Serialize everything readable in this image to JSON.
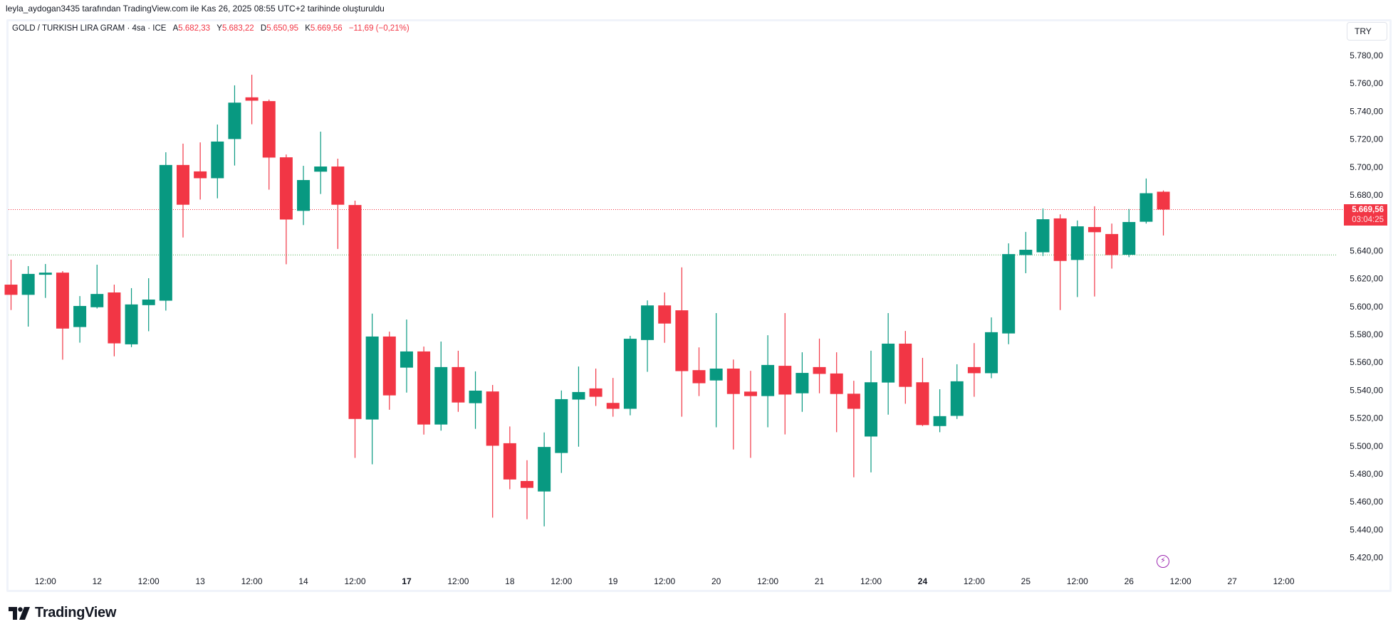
{
  "attribution": "leyla_aydogan3435 tarafından TradingView.com ile Kas 26, 2025 08:55 UTC+2 tarihinde oluşturuldu",
  "legend": {
    "symbol": "GOLD / TURKISH LIRA GRAM · 4sa · ICE",
    "open_label": "A",
    "open": "5.682,33",
    "high_label": "Y",
    "high": "5.683,22",
    "low_label": "D",
    "low": "5.650,95",
    "close_label": "K",
    "close": "5.669,56",
    "change": "−11,69 (−0,21%)"
  },
  "currency_button": "TRY",
  "last_price": {
    "price": "5.669,56",
    "countdown": "03:04:25"
  },
  "brand": "TradingView",
  "colors": {
    "up": "#089981",
    "down": "#f23645",
    "last_line": "#f23645",
    "ref_line": "#4caf50",
    "event": "#9c27b0"
  },
  "event_icon": "lightning-icon",
  "chart_data": {
    "type": "candlestick",
    "title": "GOLD / TURKISH LIRA GRAM · 4sa · ICE",
    "ylim": [
      5406,
      5790
    ],
    "last_price": 5669.56,
    "reference_line": 5637,
    "y_ticks": [
      {
        "v": 5780,
        "label": "5.780,00"
      },
      {
        "v": 5760,
        "label": "5.760,00"
      },
      {
        "v": 5740,
        "label": "5.740,00"
      },
      {
        "v": 5720,
        "label": "5.720,00"
      },
      {
        "v": 5700,
        "label": "5.700,00"
      },
      {
        "v": 5680,
        "label": "5.680,00"
      },
      {
        "v": 5640,
        "label": "5.640,00"
      },
      {
        "v": 5620,
        "label": "5.620,00"
      },
      {
        "v": 5600,
        "label": "5.600,00"
      },
      {
        "v": 5580,
        "label": "5.580,00"
      },
      {
        "v": 5560,
        "label": "5.560,00"
      },
      {
        "v": 5540,
        "label": "5.540,00"
      },
      {
        "v": 5520,
        "label": "5.520,00"
      },
      {
        "v": 5500,
        "label": "5.500,00"
      },
      {
        "v": 5480,
        "label": "5.480,00"
      },
      {
        "v": 5460,
        "label": "5.460,00"
      },
      {
        "v": 5440,
        "label": "5.440,00"
      },
      {
        "v": 5420,
        "label": "5.420,00"
      }
    ],
    "x_ticks": [
      {
        "label": "12:00"
      },
      {
        "label": "12"
      },
      {
        "label": "12:00"
      },
      {
        "label": "13"
      },
      {
        "label": "12:00"
      },
      {
        "label": "14"
      },
      {
        "label": "12:00"
      },
      {
        "label": "17",
        "bold": true
      },
      {
        "label": "12:00"
      },
      {
        "label": "18"
      },
      {
        "label": "12:00"
      },
      {
        "label": "19"
      },
      {
        "label": "12:00"
      },
      {
        "label": "20"
      },
      {
        "label": "12:00"
      },
      {
        "label": "21"
      },
      {
        "label": "12:00"
      },
      {
        "label": "24",
        "bold": true
      },
      {
        "label": "12:00"
      },
      {
        "label": "25"
      },
      {
        "label": "12:00"
      },
      {
        "label": "26"
      },
      {
        "label": "12:00"
      },
      {
        "label": "27"
      },
      {
        "label": "12:00"
      }
    ],
    "ohlc_fields": [
      "open",
      "high",
      "low",
      "close"
    ],
    "candles": [
      [
        5615.7,
        5633.6,
        5597.5,
        5608.4
      ],
      [
        5608.4,
        5629.0,
        5585.6,
        5623.4
      ],
      [
        5622.8,
        5630.5,
        5606.2,
        5624.3
      ],
      [
        5624.3,
        5625.4,
        5561.9,
        5584.2
      ],
      [
        5585.3,
        5607.5,
        5574.1,
        5600.4
      ],
      [
        5599.5,
        5630.0,
        5598.6,
        5609.0
      ],
      [
        5610.1,
        5615.7,
        5564.3,
        5573.6
      ],
      [
        5572.9,
        5613.2,
        5570.9,
        5601.5
      ],
      [
        5601.0,
        5620.3,
        5582.3,
        5605.0
      ],
      [
        5604.2,
        5710.6,
        5597.1,
        5701.5
      ],
      [
        5701.5,
        5716.8,
        5649.5,
        5673.0
      ],
      [
        5696.9,
        5717.7,
        5676.7,
        5692.0
      ],
      [
        5692.0,
        5730.5,
        5677.6,
        5718.3
      ],
      [
        5720.1,
        5758.6,
        5701.1,
        5746.2
      ],
      [
        5750.0,
        5766.2,
        5730.7,
        5747.6
      ],
      [
        5747.3,
        5748.4,
        5683.8,
        5706.8
      ],
      [
        5707.0,
        5709.0,
        5630.3,
        5662.4
      ],
      [
        5668.6,
        5700.9,
        5658.4,
        5690.7
      ],
      [
        5696.7,
        5725.4,
        5680.7,
        5700.4
      ],
      [
        5700.4,
        5706.0,
        5641.3,
        5673.0
      ],
      [
        5672.8,
        5675.9,
        5491.5,
        5519.4
      ],
      [
        5519.0,
        5594.9,
        5486.9,
        5578.5
      ],
      [
        5578.5,
        5582.0,
        5526.0,
        5536.3
      ],
      [
        5556.2,
        5590.7,
        5538.3,
        5567.8
      ],
      [
        5567.8,
        5571.3,
        5508.2,
        5515.4
      ],
      [
        5515.4,
        5574.9,
        5511.0,
        5556.6
      ],
      [
        5556.6,
        5568.3,
        5524.5,
        5531.2
      ],
      [
        5530.7,
        5553.5,
        5512.3,
        5539.7
      ],
      [
        5539.1,
        5543.8,
        5448.6,
        5500.2
      ],
      [
        5502.0,
        5514.0,
        5469.0,
        5476.0
      ],
      [
        5474.9,
        5489.8,
        5447.5,
        5470.0
      ],
      [
        5467.4,
        5509.7,
        5442.4,
        5499.3
      ],
      [
        5495.0,
        5539.8,
        5480.7,
        5533.6
      ],
      [
        5533.3,
        5557.0,
        5499.5,
        5538.7
      ],
      [
        5541.3,
        5555.5,
        5528.7,
        5535.3
      ],
      [
        5530.9,
        5548.8,
        5521.0,
        5526.7
      ],
      [
        5526.7,
        5579.0,
        5522.0,
        5576.9
      ],
      [
        5576.0,
        5604.4,
        5553.2,
        5600.8
      ],
      [
        5600.8,
        5610.1,
        5574.0,
        5587.8
      ],
      [
        5597.3,
        5628.1,
        5521.0,
        5553.7
      ],
      [
        5554.4,
        5570.7,
        5535.8,
        5545.0
      ],
      [
        5547.0,
        5595.3,
        5513.4,
        5555.5
      ],
      [
        5555.5,
        5562.0,
        5497.5,
        5537.3
      ],
      [
        5539.0,
        5553.9,
        5491.5,
        5535.8
      ],
      [
        5535.8,
        5579.4,
        5513.4,
        5558.1
      ],
      [
        5557.5,
        5595.3,
        5508.3,
        5536.9
      ],
      [
        5537.8,
        5567.2,
        5524.5,
        5552.4
      ],
      [
        5556.6,
        5577.0,
        5537.8,
        5551.7
      ],
      [
        5552.0,
        5567.2,
        5509.9,
        5537.3
      ],
      [
        5537.5,
        5546.8,
        5477.6,
        5526.7
      ],
      [
        5506.8,
        5568.3,
        5481.1,
        5545.7
      ],
      [
        5545.5,
        5595.3,
        5522.5,
        5573.4
      ],
      [
        5573.4,
        5582.5,
        5530.3,
        5542.4
      ],
      [
        5545.7,
        5563.2,
        5514.3,
        5515.0
      ],
      [
        5514.3,
        5540.7,
        5509.9,
        5521.4
      ],
      [
        5521.6,
        5558.6,
        5519.4,
        5546.4
      ],
      [
        5556.6,
        5573.8,
        5535.3,
        5552.2
      ],
      [
        5552.2,
        5592.2,
        5548.6,
        5581.6
      ],
      [
        5580.7,
        5645.3,
        5573.0,
        5637.6
      ],
      [
        5636.9,
        5653.5,
        5623.9,
        5640.7
      ],
      [
        5638.9,
        5670.3,
        5636.2,
        5662.6
      ],
      [
        5663.2,
        5666.1,
        5597.5,
        5632.7
      ],
      [
        5633.4,
        5661.7,
        5606.8,
        5657.5
      ],
      [
        5657.0,
        5671.9,
        5607.2,
        5653.3
      ],
      [
        5652.0,
        5659.5,
        5627.2,
        5636.9
      ],
      [
        5637.1,
        5669.9,
        5635.4,
        5660.6
      ],
      [
        5660.8,
        5691.8,
        5659.5,
        5681.25
      ],
      [
        5682.33,
        5683.22,
        5650.95,
        5669.56
      ]
    ]
  }
}
